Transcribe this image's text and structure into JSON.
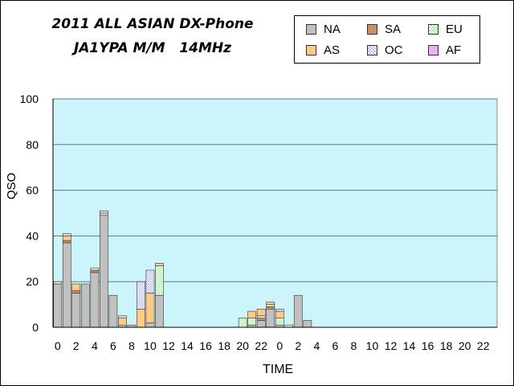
{
  "chart_data": {
    "type": "bar",
    "stacked": true,
    "title": "2011 ALL ASIAN DX-Phone",
    "subtitle": "JA1YPA M/M   14MHz",
    "xlabel": "TIME",
    "ylabel": "QSO",
    "ylim": [
      0,
      100
    ],
    "yticks": [
      0,
      20,
      40,
      60,
      80,
      100
    ],
    "grid": true,
    "legend_position": "top-right",
    "categories": [
      "0",
      "1",
      "2",
      "3",
      "4",
      "5",
      "6",
      "7",
      "8",
      "9",
      "10",
      "11",
      "12",
      "13",
      "14",
      "15",
      "16",
      "17",
      "18",
      "19",
      "20",
      "21",
      "22",
      "23",
      "0",
      "1",
      "2",
      "3",
      "4",
      "5",
      "6",
      "7",
      "8",
      "9",
      "10",
      "11",
      "12",
      "13",
      "14",
      "15",
      "16",
      "17",
      "18",
      "19",
      "20",
      "21",
      "22",
      "23"
    ],
    "xtick_labels": [
      "0",
      "",
      "2",
      "",
      "4",
      "",
      "6",
      "",
      "8",
      "",
      "10",
      "",
      "12",
      "",
      "14",
      "",
      "16",
      "",
      "18",
      "",
      "20",
      "",
      "22",
      "",
      "0",
      "",
      "2",
      "",
      "4",
      "",
      "6",
      "",
      "8",
      "",
      "10",
      "",
      "12",
      "",
      "14",
      "",
      "16",
      "",
      "18",
      "",
      "20",
      "",
      "22",
      ""
    ],
    "series": [
      {
        "name": "NA",
        "color": "#c0c0c0",
        "pattern": "solid",
        "values": [
          19,
          37,
          15,
          19,
          24,
          49,
          14,
          1,
          1,
          0,
          2,
          14,
          0,
          0,
          0,
          0,
          0,
          0,
          0,
          0,
          0,
          1,
          3,
          8,
          1,
          0,
          14,
          3,
          0,
          0,
          0,
          0,
          0,
          0,
          0,
          0,
          0,
          0,
          0,
          0,
          0,
          0,
          0,
          0,
          0,
          0,
          0,
          0
        ]
      },
      {
        "name": "SA",
        "color": "#c8906a",
        "pattern": "solid",
        "values": [
          0,
          1,
          1,
          0,
          1,
          0,
          0,
          0,
          0,
          0,
          0,
          0,
          0,
          0,
          0,
          0,
          0,
          0,
          0,
          0,
          0,
          0,
          1,
          1,
          0,
          0,
          0,
          0,
          0,
          0,
          0,
          0,
          0,
          0,
          0,
          0,
          0,
          0,
          0,
          0,
          0,
          0,
          0,
          0,
          0,
          0,
          0,
          0
        ]
      },
      {
        "name": "EU",
        "color": "#a8e8a0",
        "pattern": "check",
        "values": [
          1,
          0,
          0,
          0,
          1,
          1,
          0,
          0,
          0,
          0,
          0,
          13,
          0,
          0,
          0,
          0,
          0,
          0,
          0,
          0,
          4,
          3,
          1,
          1,
          3,
          1,
          0,
          0,
          0,
          0,
          0,
          0,
          0,
          0,
          0,
          0,
          0,
          0,
          0,
          0,
          0,
          0,
          0,
          0,
          0,
          0,
          0,
          0
        ]
      },
      {
        "name": "AS",
        "color": "#ffcc88",
        "pattern": "solid",
        "values": [
          0,
          2,
          3,
          0,
          0,
          0,
          0,
          3,
          0,
          8,
          13,
          1,
          0,
          0,
          0,
          0,
          0,
          0,
          0,
          0,
          0,
          3,
          3,
          1,
          3,
          0,
          0,
          0,
          0,
          0,
          0,
          0,
          0,
          0,
          0,
          0,
          0,
          0,
          0,
          0,
          0,
          0,
          0,
          0,
          0,
          0,
          0,
          0
        ]
      },
      {
        "name": "OC",
        "color": "#b8b8ff",
        "pattern": "check",
        "values": [
          0,
          1,
          0,
          0,
          0,
          1,
          0,
          1,
          0,
          12,
          10,
          0,
          0,
          0,
          0,
          0,
          0,
          0,
          0,
          0,
          0,
          0,
          0,
          0,
          1,
          0,
          0,
          0,
          0,
          0,
          0,
          0,
          0,
          0,
          0,
          0,
          0,
          0,
          0,
          0,
          0,
          0,
          0,
          0,
          0,
          0,
          0,
          0
        ]
      },
      {
        "name": "AF",
        "color": "#e8b0f0",
        "pattern": "solid",
        "values": [
          0,
          0,
          0,
          0,
          0,
          0,
          0,
          0,
          0,
          0,
          0,
          0,
          0,
          0,
          0,
          0,
          0,
          0,
          0,
          0,
          0,
          0,
          0,
          0,
          0,
          0,
          0,
          0,
          0,
          0,
          0,
          0,
          0,
          0,
          0,
          0,
          0,
          0,
          0,
          0,
          0,
          0,
          0,
          0,
          0,
          0,
          0,
          0
        ]
      }
    ],
    "colors": {
      "plot_background": "#ccf4fb",
      "gridline": "#5a7a80",
      "axis": "#000000"
    }
  }
}
